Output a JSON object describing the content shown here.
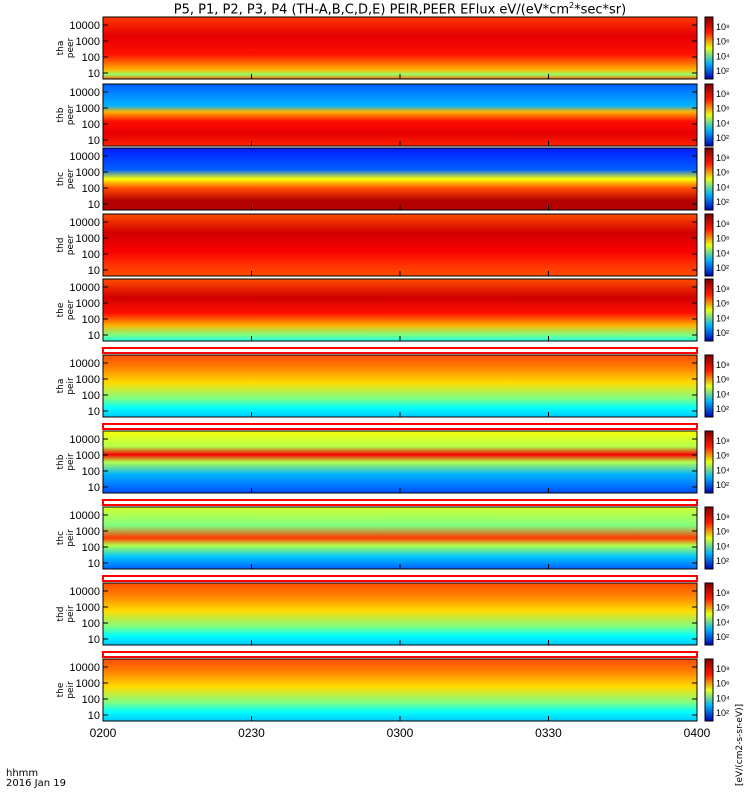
{
  "title": {
    "main": "P5, P1, P2, P3, P4 (TH-A,B,C,D,E) PEIR,PEER EFlux eV/(eV*cm",
    "sup": "2",
    "rest": "*sec*sr)"
  },
  "colors": {
    "bad": "#ffffff",
    "stripe": "#ff0000"
  },
  "chart_data": {
    "type": "heatmap",
    "x_ticks": [
      "0200",
      "0230",
      "0300",
      "0330",
      "0400"
    ],
    "x_corner_label": "hhmm",
    "date_label": "2016 Jan 19",
    "y_ticks": [
      "10000",
      "1000",
      "100",
      "10"
    ],
    "colorbar_ticks": [
      "10⁸",
      "10⁶",
      "10⁴",
      "10²"
    ],
    "colorbar_units": "[eV/(cm2-s-sr-eV)]",
    "panels": [
      {
        "probe": "tha",
        "species": "peer",
        "label_line1": "tha",
        "label_line2": "peer",
        "profile": "electron_hot"
      },
      {
        "probe": "thb",
        "species": "peer",
        "label_line1": "thb",
        "label_line2": "peer",
        "profile": "electron_b"
      },
      {
        "probe": "thc",
        "species": "peer",
        "label_line1": "thc",
        "label_line2": "peer",
        "profile": "electron_c"
      },
      {
        "probe": "thd",
        "species": "peer",
        "label_line1": "thd",
        "label_line2": "peer",
        "profile": "electron_d"
      },
      {
        "probe": "the",
        "species": "peer",
        "label_line1": "the",
        "label_line2": "peer",
        "profile": "electron_e"
      },
      {
        "probe": "tha",
        "species": "peir",
        "label_line1": "tha",
        "label_line2": "peir",
        "profile": "ion"
      },
      {
        "probe": "thb",
        "species": "peir",
        "label_line1": "thb",
        "label_line2": "peir",
        "profile": "ion_band"
      },
      {
        "probe": "thc",
        "species": "peir",
        "label_line1": "thc",
        "label_line2": "peir",
        "profile": "ion_band2"
      },
      {
        "probe": "thd",
        "species": "peir",
        "label_line1": "thd",
        "label_line2": "peir",
        "profile": "ion"
      },
      {
        "probe": "the",
        "species": "peir",
        "label_line1": "the",
        "label_line2": "peir",
        "profile": "ion"
      }
    ]
  }
}
